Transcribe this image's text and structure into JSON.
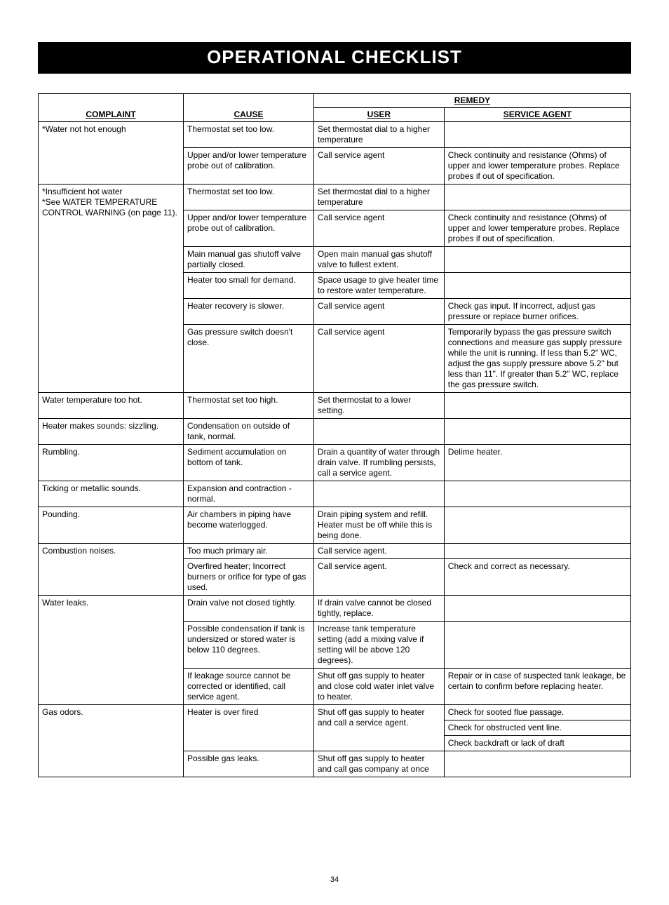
{
  "title": "OPERATIONAL CHECKLIST",
  "page_number": "34",
  "headers": {
    "complaint": "COMPLAINT",
    "cause": "CAUSE",
    "remedy": "REMEDY",
    "user": "USER",
    "service_agent": "SERVICE AGENT"
  },
  "cells": {
    "r0_complaint": "*Water not hot enough",
    "r0_cause": "Thermostat set too low.",
    "r0_user": "Set thermostat dial to a higher temperature",
    "r0_agent": "",
    "r1_cause": "Upper and/or lower temperature probe out of calibration.",
    "r1_user": "Call service agent",
    "r1_agent": "Check continuity and resistance (Ohms) of upper and lower temperature probes. Replace probes if out of specification.",
    "r2_complaint": "*Insufficient hot water\n*See WATER TEMPERATURE CONTROL WARNING (on page 11).",
    "r2_cause": "Thermostat set too low.",
    "r2_user": "Set thermostat dial to a higher temperature",
    "r2_agent": "",
    "r3_cause": "Upper and/or lower temperature probe out of calibration.",
    "r3_user": "Call service agent",
    "r3_agent": "Check continuity and resistance (Ohms) of upper and lower temperature probes. Replace probes if out of specification.",
    "r4_cause": "Main manual gas shutoff valve partially closed.",
    "r4_user": "Open main manual gas shutoff valve to fullest extent.",
    "r4_agent": "",
    "r5_cause": "Heater too small for demand.",
    "r5_user": "Space usage to give heater time to restore water temperature.",
    "r5_agent": "",
    "r6_cause": "Heater recovery is slower.",
    "r6_user": "Call service agent",
    "r6_agent": "Check gas input. If incorrect, adjust gas pressure or replace burner orifices.",
    "r7_cause": "Gas pressure switch doesn't close.",
    "r7_user": "Call service agent",
    "r7_agent": "Temporarily bypass the gas pressure switch connections and measure gas supply pressure while the unit is running. If less than 5.2\" WC, adjust the gas supply pressure above 5.2\" but less than 11\".  If greater than 5.2\" WC, replace the gas pressure switch.",
    "r8_complaint": "Water temperature too hot.",
    "r8_cause": "Thermostat set too high.",
    "r8_user": "Set thermostat to a lower setting.",
    "r8_agent": "",
    "r9_complaint": "Heater makes sounds: sizzling.",
    "r9_cause": "Condensation on outside of tank, normal.",
    "r9_user": "",
    "r9_agent": "",
    "r10_complaint": "Rumbling.",
    "r10_cause": "Sediment accumulation on bottom of tank.",
    "r10_user": "Drain a quantity of water through drain valve. If rumbling persists, call a service agent.",
    "r10_agent": "Delime heater.",
    "r11_complaint": "Ticking or metallic sounds.",
    "r11_cause": "Expansion and contraction - normal.",
    "r11_user": "",
    "r11_agent": "",
    "r12_complaint": "Pounding.",
    "r12_cause": "Air chambers in piping have become waterlogged.",
    "r12_user": "Drain piping system and refill. Heater must be off while this is being done.",
    "r12_agent": "",
    "r13_complaint": "Combustion noises.",
    "r13_cause": "Too much primary air.",
    "r13_user": "Call service agent.",
    "r13_agent": "",
    "r14_cause": "Overfired heater; Incorrect burners or orifice for type of gas used.",
    "r14_user": "Call service agent.",
    "r14_agent": "Check and correct as necessary.",
    "r15_complaint": "Water leaks.",
    "r15_cause": "Drain valve not closed tightly.",
    "r15_user": "If drain valve cannot be closed tightly, replace.",
    "r15_agent": "",
    "r16_cause": "Possible condensation if tank is undersized or stored water is below 110 degrees.",
    "r16_user": "Increase tank temperature setting (add a mixing valve if setting will be above 120 degrees).",
    "r16_agent": "",
    "r17_cause": "If leakage source cannot be corrected or identified, call service agent.",
    "r17_user": "Shut off gas supply to heater and close cold water inlet valve to heater.",
    "r17_agent": "Repair or in case of suspected tank leakage, be certain to confirm before replacing heater.",
    "r18_complaint": "Gas odors.",
    "r18_cause": "Heater is over fired",
    "r18_user": "Shut off gas supply to heater and call a service agent.",
    "r18_agent_a": "Check for sooted flue passage.",
    "r18_agent_b": "Check for obstructed vent line.",
    "r18_agent_c": "Check backdraft or lack of draft",
    "r19_cause": "Possible gas leaks.",
    "r19_user": "Shut off gas supply to heater and call gas company at once",
    "r19_agent": ""
  }
}
